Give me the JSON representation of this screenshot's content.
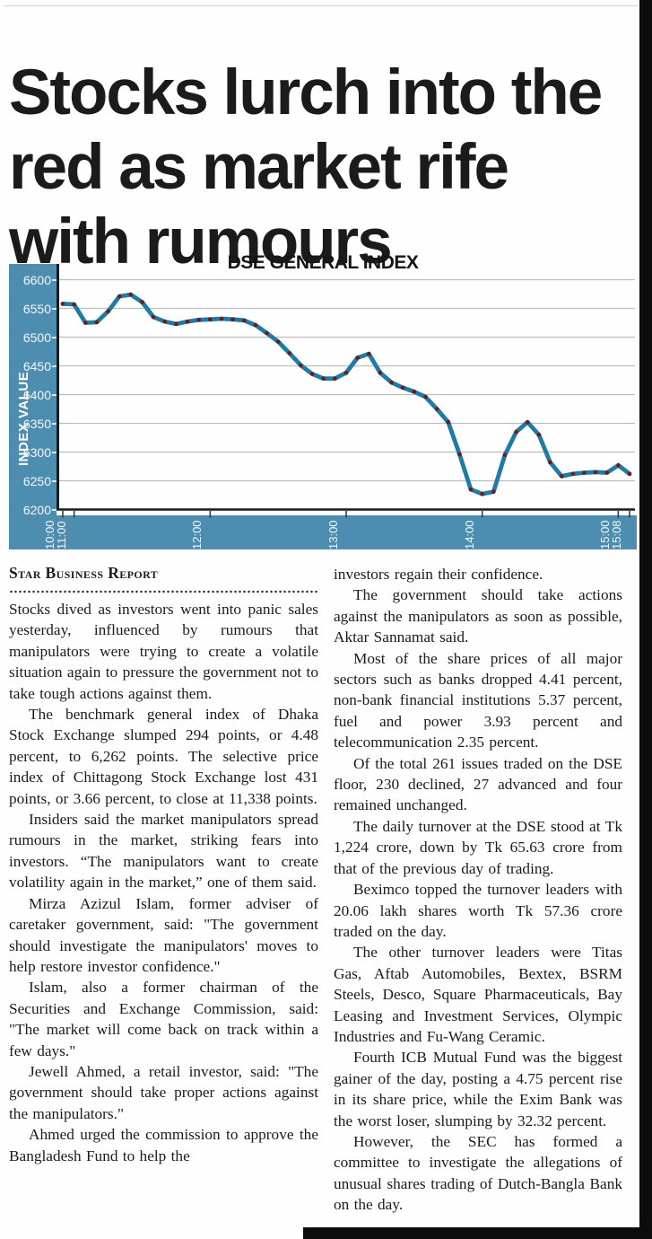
{
  "headline": "Stocks lurch into the red as market rife with rumours",
  "byline": "Star Business Report",
  "article": {
    "left_column": [
      "Stocks dived as investors went into panic sales yesterday, influenced by rumours that manipulators were trying to create a volatile situation again to pressure the government not to take tough actions against them.",
      "The benchmark general index of Dhaka Stock Exchange slumped 294 points, or 4.48 percent, to 6,262 points. The selective price index of Chittagong Stock Exchange lost 431 points, or 3.66 percent, to close at 11,338 points.",
      "Insiders said the market manipulators spread rumours in the market, striking fears into investors. “The manipulators want to create volatility again in the market,” one of them said.",
      "Mirza Azizul Islam, former adviser of caretaker government, said: \"The government should investigate the manipulators' moves to help restore investor confidence.\"",
      "Islam, also a former chairman of the Securities and Exchange Commission, said: \"The market will come back on track within a few days.\"",
      "Jewell Ahmed, a retail investor, said: \"The government should take proper actions against the manipulators.\"",
      "Ahmed urged the commission to approve the Bangladesh Fund to help the"
    ],
    "right_column": [
      "investors regain their confidence.",
      "The government should take actions against the manipulators as soon as possible, Aktar Sannamat said.",
      "Most of the share prices of all major sectors such as banks dropped 4.41 percent, non-bank financial institutions 5.37 percent, fuel and power 3.93 percent and telecommunication 2.35 percent.",
      "Of the total 261 issues traded on the DSE floor, 230 declined, 27 advanced and four remained unchanged.",
      "The daily turnover at the DSE stood at Tk 1,224 crore, down by Tk 65.63 crore from that of the previous day of trading.",
      "Beximco topped the turnover leaders with 20.06 lakh shares worth Tk 57.36 crore traded on the day.",
      "The other turnover leaders were Titas Gas, Aftab Automobiles, Bextex, BSRM Steels, Desco, Square Pharmaceuticals, Bay Leasing and Investment Services, Olympic Industries and Fu-Wang Ceramic.",
      "Fourth ICB Mutual Fund was the biggest gainer of the day, posting a 4.75 percent rise in its share price, while the Exim Bank was the worst loser, slumping by 32.32 percent.",
      "However, the SEC has formed a committee to investigate the allegations of unusual shares trading of Dutch-Bangla Bank on the day."
    ]
  },
  "chart_data": {
    "type": "line",
    "title": "DSE GENERAL INDEX",
    "xlabel": "",
    "ylabel": "INDEX VALUE",
    "ylim": [
      6200,
      6600
    ],
    "grid": "horizontal",
    "legend": "none",
    "band_color": "#4D8DB0",
    "line_color": "#1E7BA6",
    "marker_color": "#6E1B20",
    "gridline_color": "#bdbdbd",
    "axis_color": "#1a1a1a",
    "y_ticks": [
      6600,
      6550,
      6500,
      6450,
      6400,
      6350,
      6300,
      6250,
      6200
    ],
    "x_ticks": [
      {
        "label": "10:00",
        "i": 0
      },
      {
        "label": "11:00",
        "i": 1
      },
      {
        "label": "12:00",
        "i": 13
      },
      {
        "label": "13:00",
        "i": 25
      },
      {
        "label": "14:00",
        "i": 37
      },
      {
        "label": "15:00",
        "i": 49
      },
      {
        "label": "15:08",
        "i": 50
      }
    ],
    "series": [
      {
        "name": "DSE General Index",
        "points": [
          {
            "t": "10:00",
            "v": 6558
          },
          {
            "t": "11:00",
            "v": 6557
          },
          {
            "t": "11:05",
            "v": 6525
          },
          {
            "t": "11:10",
            "v": 6526
          },
          {
            "t": "11:15",
            "v": 6545
          },
          {
            "t": "11:20",
            "v": 6571
          },
          {
            "t": "11:25",
            "v": 6574
          },
          {
            "t": "11:30",
            "v": 6561
          },
          {
            "t": "11:35",
            "v": 6535
          },
          {
            "t": "11:40",
            "v": 6527
          },
          {
            "t": "11:45",
            "v": 6523
          },
          {
            "t": "11:50",
            "v": 6527
          },
          {
            "t": "11:55",
            "v": 6530
          },
          {
            "t": "12:00",
            "v": 6531
          },
          {
            "t": "12:05",
            "v": 6532
          },
          {
            "t": "12:10",
            "v": 6531
          },
          {
            "t": "12:15",
            "v": 6529
          },
          {
            "t": "12:20",
            "v": 6521
          },
          {
            "t": "12:25",
            "v": 6507
          },
          {
            "t": "12:30",
            "v": 6492
          },
          {
            "t": "12:35",
            "v": 6472
          },
          {
            "t": "12:40",
            "v": 6451
          },
          {
            "t": "12:45",
            "v": 6436
          },
          {
            "t": "12:50",
            "v": 6428
          },
          {
            "t": "12:55",
            "v": 6428
          },
          {
            "t": "13:00",
            "v": 6438
          },
          {
            "t": "13:05",
            "v": 6464
          },
          {
            "t": "13:10",
            "v": 6471
          },
          {
            "t": "13:15",
            "v": 6438
          },
          {
            "t": "13:20",
            "v": 6421
          },
          {
            "t": "13:25",
            "v": 6412
          },
          {
            "t": "13:30",
            "v": 6405
          },
          {
            "t": "13:35",
            "v": 6396
          },
          {
            "t": "13:40",
            "v": 6375
          },
          {
            "t": "13:45",
            "v": 6352
          },
          {
            "t": "13:50",
            "v": 6296
          },
          {
            "t": "13:55",
            "v": 6235
          },
          {
            "t": "14:00",
            "v": 6227
          },
          {
            "t": "14:05",
            "v": 6231
          },
          {
            "t": "14:10",
            "v": 6295
          },
          {
            "t": "14:15",
            "v": 6335
          },
          {
            "t": "14:20",
            "v": 6352
          },
          {
            "t": "14:25",
            "v": 6330
          },
          {
            "t": "14:30",
            "v": 6282
          },
          {
            "t": "14:35",
            "v": 6258
          },
          {
            "t": "14:40",
            "v": 6262
          },
          {
            "t": "14:45",
            "v": 6264
          },
          {
            "t": "14:50",
            "v": 6265
          },
          {
            "t": "14:55",
            "v": 6264
          },
          {
            "t": "15:00",
            "v": 6277
          },
          {
            "t": "15:08",
            "v": 6262
          }
        ]
      }
    ]
  }
}
